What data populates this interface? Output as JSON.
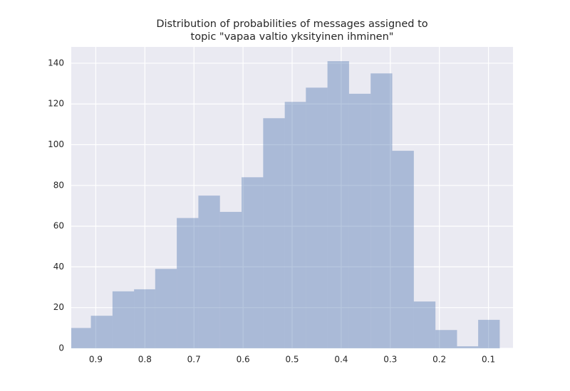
{
  "chart_data": {
    "type": "histogram",
    "title": [
      "Distribution of probabilities of messages assigned to",
      "topic \"vapaa valtio yksityinen ihminen\""
    ],
    "bins": [
      0.954,
      0.91,
      0.866,
      0.822,
      0.779,
      0.735,
      0.691,
      0.647,
      0.603,
      0.559,
      0.515,
      0.472,
      0.428,
      0.384,
      0.34,
      0.296,
      0.252,
      0.208,
      0.164,
      0.121,
      0.077
    ],
    "values": [
      10,
      16,
      28,
      29,
      39,
      64,
      75,
      67,
      84,
      113,
      121,
      128,
      141,
      125,
      135,
      97,
      23,
      9,
      1,
      14
    ],
    "color": "#4c72b0",
    "xlim": [
      0.95,
      0.05
    ],
    "xticks": [
      0.9,
      0.8,
      0.7,
      0.6,
      0.5,
      0.4,
      0.3,
      0.2,
      0.1
    ],
    "ylim": [
      0,
      148
    ],
    "yticks": [
      0,
      20,
      40,
      60,
      80,
      100,
      120,
      140
    ],
    "grid": true
  }
}
